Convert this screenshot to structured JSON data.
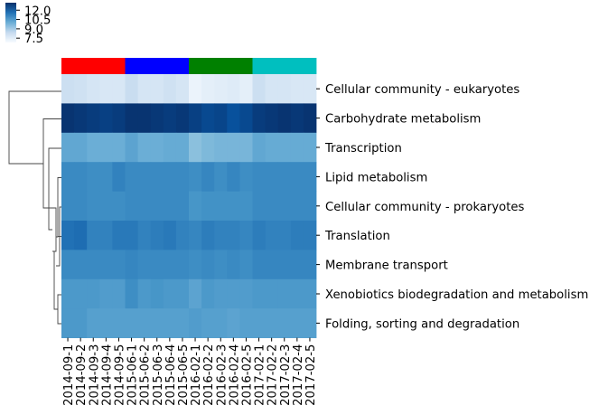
{
  "chart_data": {
    "type": "heatmap",
    "title": "",
    "xlabel": "",
    "ylabel": "",
    "columns": [
      "2014-09-1",
      "2014-09-2",
      "2014-09-3",
      "2014-09-4",
      "2014-09-5",
      "2015-06-1",
      "2015-06-2",
      "2015-06-3",
      "2015-06-4",
      "2015-06-5",
      "2016-02-1",
      "2016-02-2",
      "2016-02-3",
      "2016-02-4",
      "2016-02-5",
      "2017-02-1",
      "2017-02-2",
      "2017-02-3",
      "2017-02-4",
      "2017-02-5"
    ],
    "rows": [
      "Cellular community - eukaryotes",
      "Carbohydrate metabolism",
      "Transcription",
      "Lipid metabolism",
      "Cellular community - prokaryotes",
      "Translation",
      "Membrane transport",
      "Xenobiotics biodegradation and metabolism",
      "Folding, sorting and degradation"
    ],
    "values": [
      [
        8.2,
        8.1,
        7.9,
        7.8,
        7.8,
        8.3,
        7.9,
        7.9,
        8.1,
        7.9,
        7.2,
        7.4,
        7.5,
        7.6,
        7.4,
        8.2,
        7.9,
        7.9,
        7.8,
        7.8
      ],
      [
        13.1,
        13.0,
        12.9,
        12.8,
        12.9,
        13.1,
        13.1,
        13.0,
        12.9,
        13.0,
        12.8,
        12.6,
        12.7,
        12.4,
        12.6,
        12.9,
        13.0,
        13.1,
        13.0,
        13.1
      ],
      [
        10.2,
        10.2,
        10.0,
        10.0,
        10.0,
        10.3,
        10.0,
        10.0,
        10.1,
        10.1,
        9.5,
        9.7,
        9.8,
        9.8,
        9.8,
        10.2,
        10.1,
        10.1,
        10.1,
        10.1
      ],
      [
        11.0,
        11.0,
        10.9,
        10.9,
        11.2,
        11.0,
        11.0,
        11.0,
        11.0,
        11.0,
        10.9,
        11.1,
        10.9,
        11.1,
        10.9,
        11.0,
        11.0,
        11.0,
        11.0,
        11.0
      ],
      [
        11.0,
        11.0,
        10.9,
        10.9,
        10.9,
        11.0,
        11.0,
        11.0,
        11.0,
        11.0,
        10.7,
        10.8,
        10.8,
        10.8,
        10.8,
        11.0,
        11.0,
        11.0,
        11.0,
        11.0
      ],
      [
        11.6,
        11.7,
        11.2,
        11.2,
        11.4,
        11.4,
        11.2,
        11.3,
        11.4,
        11.2,
        11.1,
        11.3,
        11.2,
        11.2,
        11.1,
        11.3,
        11.2,
        11.2,
        11.3,
        11.3
      ],
      [
        11.0,
        11.0,
        11.0,
        11.0,
        11.0,
        11.1,
        11.0,
        11.0,
        11.0,
        11.0,
        10.9,
        11.0,
        10.9,
        11.0,
        10.9,
        11.1,
        11.1,
        11.1,
        11.1,
        11.1
      ],
      [
        10.6,
        10.6,
        10.6,
        10.5,
        10.5,
        10.9,
        10.6,
        10.7,
        10.6,
        10.6,
        10.3,
        10.6,
        10.5,
        10.5,
        10.5,
        10.6,
        10.6,
        10.6,
        10.6,
        10.6
      ],
      [
        10.6,
        10.6,
        10.4,
        10.4,
        10.4,
        10.4,
        10.4,
        10.4,
        10.4,
        10.4,
        10.5,
        10.4,
        10.4,
        10.3,
        10.4,
        10.4,
        10.4,
        10.4,
        10.4,
        10.4
      ]
    ],
    "colorbar": {
      "colormap": "Blues",
      "range": [
        6.8,
        13.2
      ],
      "ticks": [
        "12.0",
        "10.5",
        "9.0",
        "7.5"
      ],
      "tick_values": [
        12.0,
        10.5,
        9.0,
        7.5
      ]
    },
    "column_groups": [
      {
        "color": "#ff0000",
        "count": 5
      },
      {
        "color": "#0000ff",
        "count": 5
      },
      {
        "color": "#008000",
        "count": 5
      },
      {
        "color": "#00bfbf",
        "count": 5
      }
    ],
    "row_dendrogram": {
      "leaf_order": [
        "Cellular community - eukaryotes",
        "Carbohydrate metabolism",
        "Transcription",
        "Lipid metabolism",
        "Cellular community - prokaryotes",
        "Translation",
        "Membrane transport",
        "Xenobiotics biodegradation and metabolism",
        "Folding, sorting and degradation"
      ]
    }
  }
}
